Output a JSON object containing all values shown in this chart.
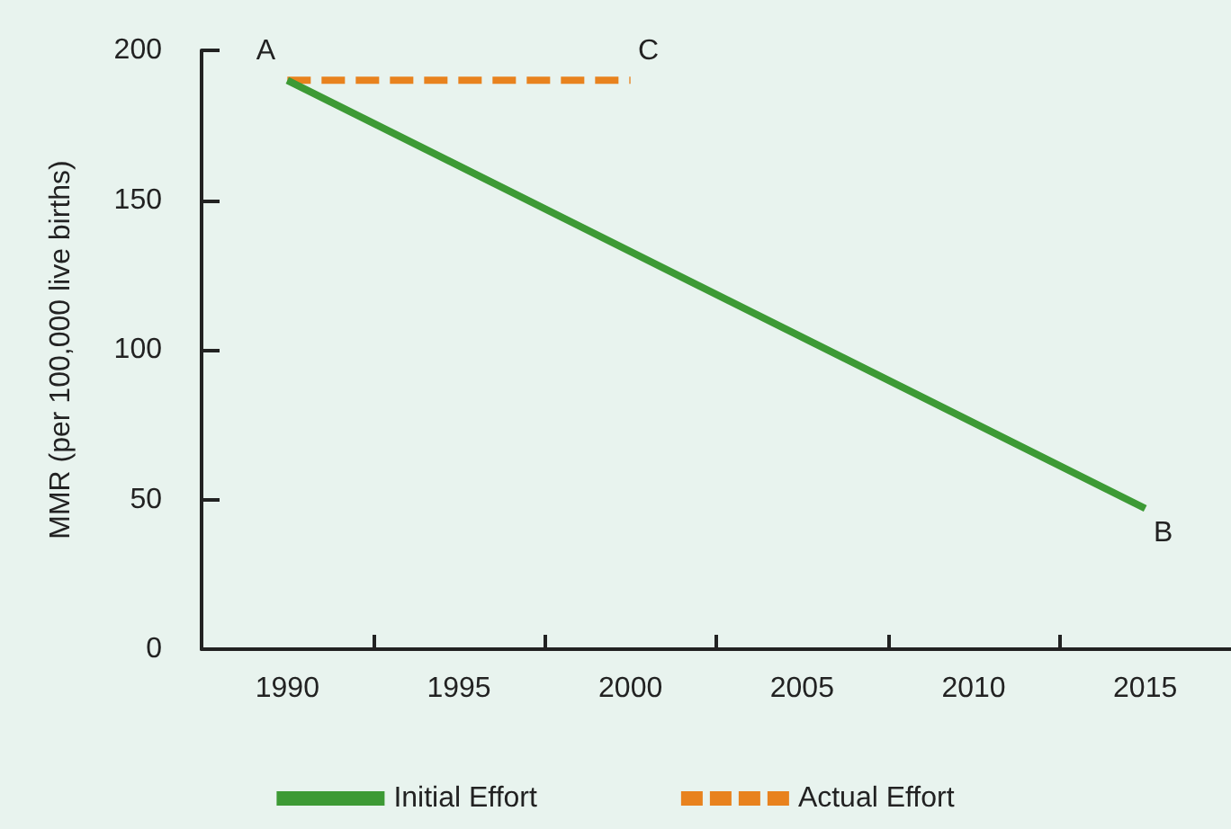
{
  "chart_data": {
    "type": "line",
    "ylabel": "MMR (per 100,000 live births)",
    "series": [
      {
        "name": "Initial Effort",
        "color": "#3d9a35",
        "x": [
          1990,
          2015
        ],
        "values": [
          190,
          47
        ],
        "line_style": "solid"
      },
      {
        "name": "Actual Effort",
        "color": "#e8821e",
        "x": [
          1990,
          2000
        ],
        "values": [
          190,
          190
        ],
        "line_style": "dashed"
      }
    ],
    "xlim": [
      1987.5,
      2017.5
    ],
    "xticks": [
      1990,
      {
        "value": 1992.5,
        "label": null
      },
      1995,
      {
        "value": 1997.5,
        "label": null
      },
      2000,
      {
        "value": 2002.5,
        "label": null
      },
      2005,
      {
        "value": 2007.5,
        "label": null
      },
      2010,
      {
        "value": 2012.5,
        "label": null
      },
      2015
    ],
    "ylim": [
      0,
      200
    ],
    "yticks": [
      0,
      50,
      100,
      150,
      200
    ],
    "grid": false,
    "legend": "bottom",
    "marker": "none",
    "annotations": [
      {
        "text": "A",
        "x": 1990,
        "y": 190
      },
      {
        "text": "B",
        "x": 2015,
        "y": 47
      },
      {
        "text": "C",
        "x": 2000,
        "y": 190
      }
    ]
  }
}
